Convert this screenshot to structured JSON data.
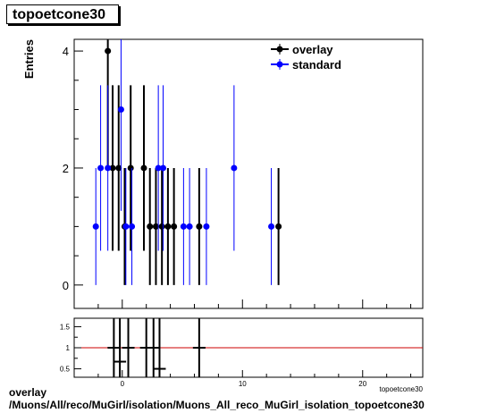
{
  "title": "topoetcone30",
  "footer": {
    "line1": "overlay",
    "line2": "/Muons/All/reco/MuGirl/isolation/Muons_All_reco_MuGirl_isolation_topoetcone30"
  },
  "colors": {
    "overlay": "#000000",
    "standard": "#0000ff",
    "ratio_line": "#cc0000"
  },
  "chart_data": [
    {
      "type": "scatter",
      "title": "topoetcone30",
      "ylabel": "Entries",
      "xlabel": "topoetcone30",
      "xlim": [
        -4,
        25
      ],
      "ylim": [
        -0.4,
        4.2
      ],
      "yticks": [
        0,
        2,
        4
      ],
      "legend": "top-right",
      "series": [
        {
          "name": "overlay",
          "color": "#000000",
          "points": [
            {
              "x": -1.2,
              "y": 4
            },
            {
              "x": -0.8,
              "y": 2
            },
            {
              "x": -0.3,
              "y": 2
            },
            {
              "x": 0.2,
              "y": 1
            },
            {
              "x": 0.7,
              "y": 2
            },
            {
              "x": 1.8,
              "y": 2
            },
            {
              "x": 2.3,
              "y": 1
            },
            {
              "x": 2.8,
              "y": 1
            },
            {
              "x": 3.3,
              "y": 1
            },
            {
              "x": 3.8,
              "y": 1
            },
            {
              "x": 4.3,
              "y": 1
            },
            {
              "x": 6.4,
              "y": 1
            },
            {
              "x": 13.0,
              "y": 1
            }
          ]
        },
        {
          "name": "standard",
          "color": "#0000ff",
          "points": [
            {
              "x": -2.2,
              "y": 1
            },
            {
              "x": -1.8,
              "y": 2
            },
            {
              "x": -1.2,
              "y": 2
            },
            {
              "x": -0.1,
              "y": 3
            },
            {
              "x": 0.3,
              "y": 1
            },
            {
              "x": 0.8,
              "y": 1
            },
            {
              "x": 3.0,
              "y": 2
            },
            {
              "x": 3.4,
              "y": 2
            },
            {
              "x": 5.1,
              "y": 1
            },
            {
              "x": 5.6,
              "y": 1
            },
            {
              "x": 7.0,
              "y": 1
            },
            {
              "x": 9.3,
              "y": 2
            },
            {
              "x": 12.4,
              "y": 1
            }
          ]
        }
      ]
    },
    {
      "type": "scatter",
      "title": "",
      "xlim": [
        -4,
        25
      ],
      "ylim": [
        0.3,
        1.7
      ],
      "yticks": [
        0.5,
        1,
        1.5
      ],
      "xticks": [
        0,
        10,
        20
      ],
      "reference_line": 1,
      "series": [
        {
          "name": "ratio",
          "color": "#000000",
          "points": [
            {
              "x": -0.7,
              "y": 1.0
            },
            {
              "x": -0.2,
              "y": 0.67
            },
            {
              "x": 0.5,
              "y": 1.0
            },
            {
              "x": 2.0,
              "y": 1.0
            },
            {
              "x": 2.6,
              "y": 1.0
            },
            {
              "x": 3.1,
              "y": 0.5
            },
            {
              "x": 6.4,
              "y": 1.0
            }
          ]
        }
      ]
    }
  ]
}
